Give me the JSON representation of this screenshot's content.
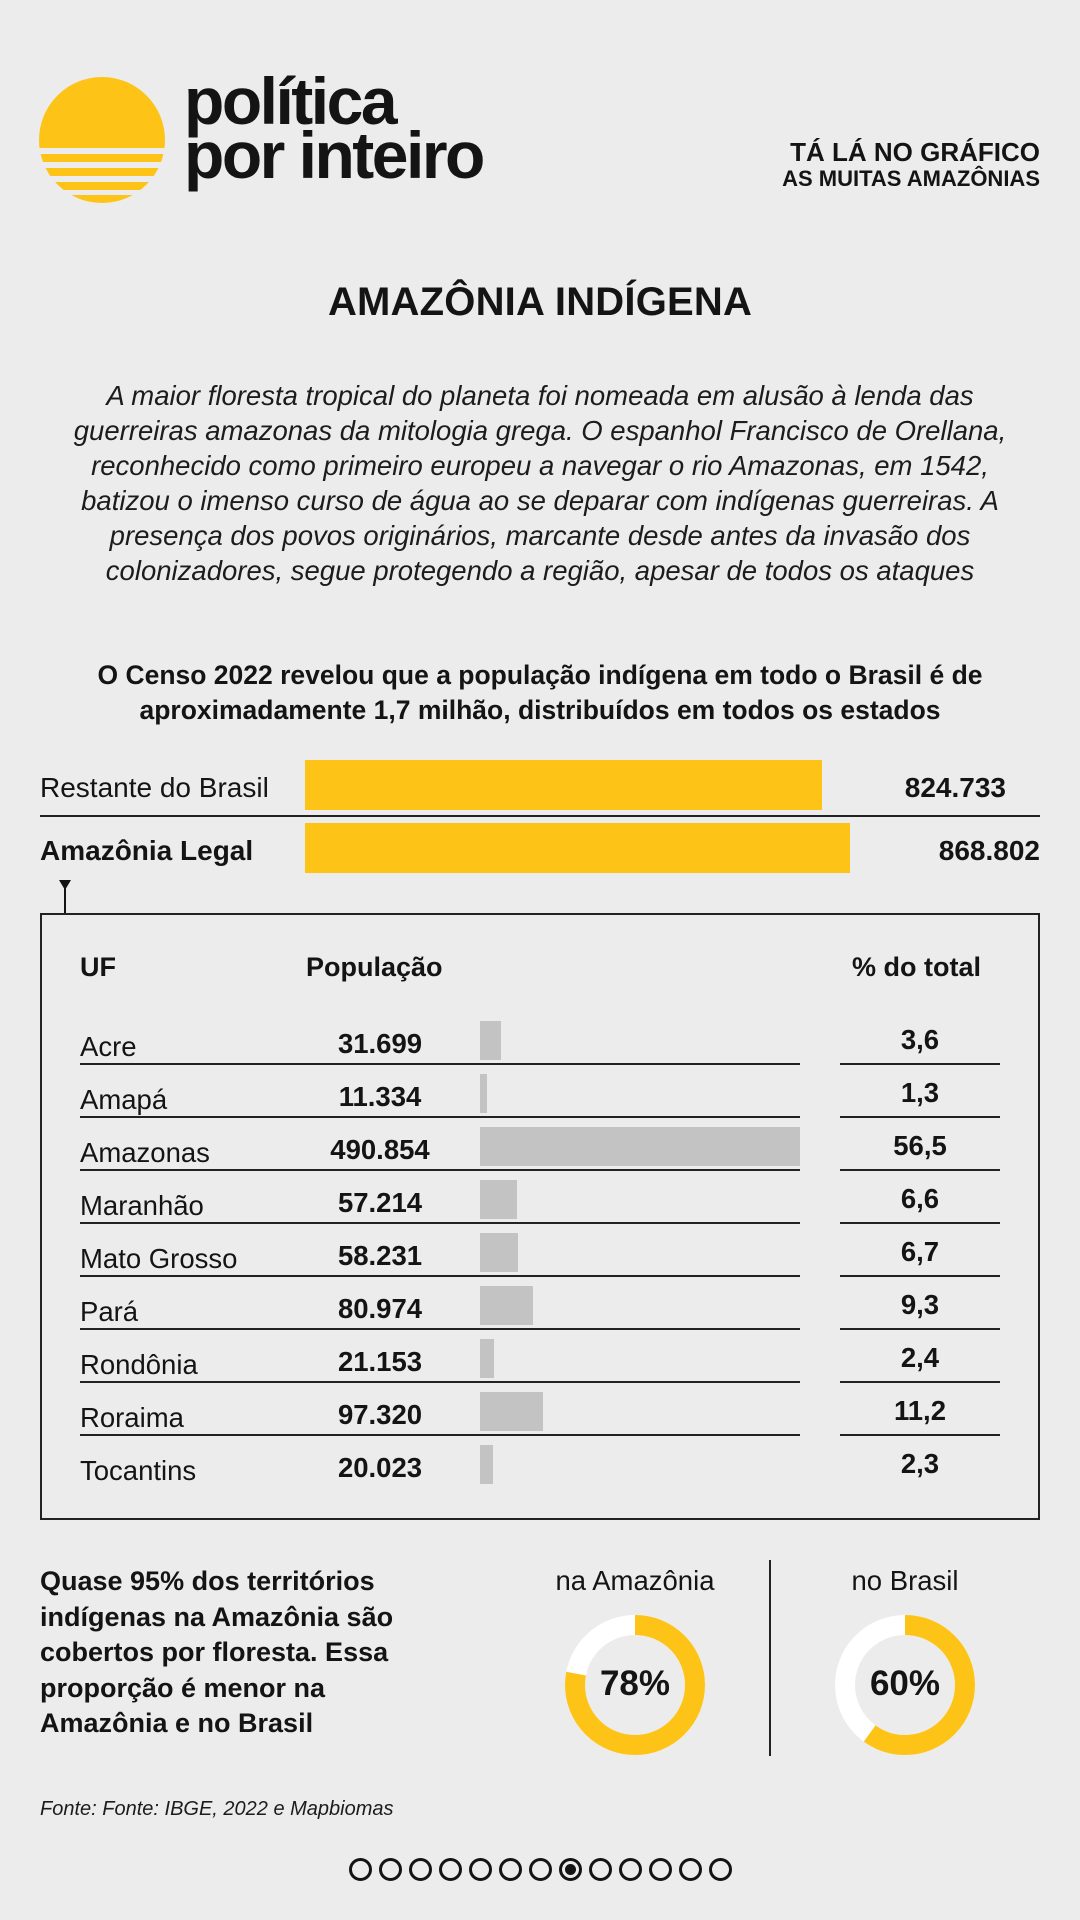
{
  "header": {
    "brand_line1": "política",
    "brand_line2": "por inteiro",
    "section_line1": "TÁ LÁ NO GRÁFICO",
    "section_line2": "AS MUITAS AMAZÔNIAS"
  },
  "title": "AMAZÔNIA INDÍGENA",
  "intro": "A maior floresta tropical do planeta foi nomeada em alusão à lenda das guerreiras amazonas da mitologia grega. O espanhol Francisco de Orellana, reconhecido como primeiro europeu a navegar o rio Amazonas, em 1542, batizou o imenso curso de água ao se deparar com indígenas guerreiras. A presença dos povos originários, marcante desde antes da invasão dos colonizadores, segue protegendo a região, apesar de todos os ataques",
  "lead": "O Censo 2022 revelou que a população indígena em todo o Brasil é de aproximadamente 1,7 milhão, distribuídos em todos os estados",
  "colors": {
    "accent": "#fdc417",
    "bar_gray": "#c3c3c3",
    "ink": "#141414",
    "background": "#ececec",
    "ring_empty": "#ffffff"
  },
  "chart_data": [
    {
      "type": "bar",
      "orientation": "horizontal",
      "categories": [
        "Restante do Brasil",
        "Amazônia Legal"
      ],
      "values": [
        824733,
        868802
      ],
      "value_labels": [
        "824.733",
        "868.802"
      ],
      "xlim": [
        0,
        868802
      ]
    },
    {
      "type": "table",
      "headers": {
        "uf": "UF",
        "population": "População",
        "percent": "% do total"
      },
      "rows": [
        {
          "uf": "Acre",
          "population": 31699,
          "population_label": "31.699",
          "percent": 3.6,
          "percent_label": "3,6"
        },
        {
          "uf": "Amapá",
          "population": 11334,
          "population_label": "11.334",
          "percent": 1.3,
          "percent_label": "1,3"
        },
        {
          "uf": "Amazonas",
          "population": 490854,
          "population_label": "490.854",
          "percent": 56.5,
          "percent_label": "56,5"
        },
        {
          "uf": "Maranhão",
          "population": 57214,
          "population_label": "57.214",
          "percent": 6.6,
          "percent_label": "6,6"
        },
        {
          "uf": "Mato Grosso",
          "population": 58231,
          "population_label": "58.231",
          "percent": 6.7,
          "percent_label": "6,7"
        },
        {
          "uf": "Pará",
          "population": 80974,
          "population_label": "80.974",
          "percent": 9.3,
          "percent_label": "9,3"
        },
        {
          "uf": "Rondônia",
          "population": 21153,
          "population_label": "21.153",
          "percent": 2.4,
          "percent_label": "2,4"
        },
        {
          "uf": "Roraima",
          "population": 97320,
          "population_label": "97.320",
          "percent": 11.2,
          "percent_label": "11,2"
        },
        {
          "uf": "Tocantins",
          "population": 20023,
          "population_label": "20.023",
          "percent": 2.3,
          "percent_label": "2,3"
        }
      ],
      "bar_max": 490854
    },
    {
      "type": "pie",
      "style": "donut",
      "title": "Quase 95% dos territórios indígenas na Amazônia são cobertos por floresta. Essa proporção é menor na Amazônia e no Brasil",
      "series": [
        {
          "name": "na Amazônia",
          "value": 78,
          "label": "78%"
        },
        {
          "name": "no Brasil",
          "value": 60,
          "label": "60%"
        }
      ]
    }
  ],
  "source": "Fonte: Fonte: IBGE, 2022 e Mapbiomas",
  "pagination": {
    "total": 13,
    "current": 8
  }
}
